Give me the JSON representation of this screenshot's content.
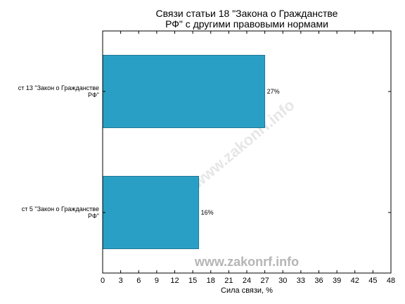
{
  "chart_data": {
    "type": "bar",
    "orientation": "horizontal",
    "title": "Связи статьи 18 \"Закона о Гражданстве РФ\" с другими правовыми нормами",
    "title_lines": [
      "Связи статьи 18 \"Закона о Гражданстве",
      "РФ\" с другими правовыми нормами"
    ],
    "categories": [
      "ст 13 \"Закон о Гражданстве РФ\"",
      "ст 5 \"Закон о Гражданстве РФ\""
    ],
    "category_lines": [
      [
        "ст 13 \"Закон о Гражданстве",
        "РФ\""
      ],
      [
        "ст 5 \"Закон о Гражданстве",
        "РФ\""
      ]
    ],
    "values": [
      27,
      16
    ],
    "value_labels": [
      "27%",
      "16%"
    ],
    "xlabel": "Сила связи, %",
    "ylabel": "",
    "xlim": [
      0,
      48
    ],
    "xticks": [
      0,
      3,
      6,
      9,
      12,
      15,
      18,
      21,
      24,
      27,
      30,
      33,
      36,
      39,
      42,
      45,
      48
    ],
    "bar_color": "#2a9fc5",
    "grid": false,
    "legend": "none"
  },
  "watermark": "www.zakonrf.info"
}
